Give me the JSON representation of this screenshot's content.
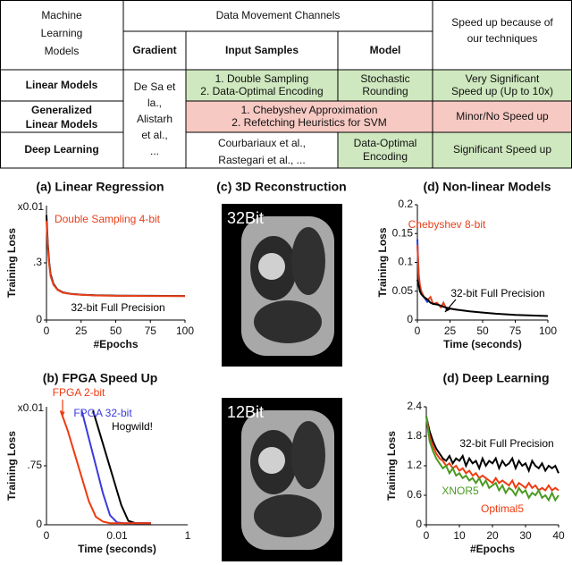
{
  "table": {
    "header": {
      "models": [
        "Machine",
        "Learning",
        "Models"
      ],
      "channels": "Data Movement Channels",
      "speedup": [
        "Speed up because of",
        "our techniques"
      ],
      "gradient": "Gradient",
      "input": "Input Samples",
      "model": "Model"
    },
    "gradient_cell": [
      "De Sa et",
      "la.,",
      "Alistarh",
      "et al.,",
      "..."
    ],
    "rows": [
      {
        "name": [
          "Linear Models"
        ],
        "input": [
          "1. Double Sampling",
          "2. Data-Optimal Encoding"
        ],
        "model": [
          "Stochastic",
          "Rounding"
        ],
        "speedup": [
          "Very Significant",
          "Speed up (Up to 10x)"
        ]
      },
      {
        "name": [
          "Generalized",
          "Linear Models"
        ],
        "input_model": [
          "1. Chebyshev Approximation",
          "2. Refetching Heuristics for SVM"
        ],
        "speedup": [
          "Minor/No Speed up"
        ]
      },
      {
        "name": [
          "Deep Learning"
        ],
        "input": [
          "Courbariaux et al.,",
          "Rastegari et al., ..."
        ],
        "model": [
          "Data-Optimal",
          "Encoding"
        ],
        "speedup": [
          "Significant Speed up"
        ]
      }
    ]
  },
  "panel_c": {
    "title": "(c) 3D Reconstruction",
    "images": [
      "32Bit",
      "12Bit"
    ]
  },
  "chart_data": [
    {
      "type": "line",
      "title": "(a) Linear Regression",
      "xlabel": "#Epochs",
      "ylabel": "Training Loss",
      "y_multiplier": "x0.01",
      "xlim": [
        0,
        100
      ],
      "xticks": [
        0,
        25,
        50,
        75,
        100
      ],
      "ylim": [
        0,
        0.6
      ],
      "yticks": [
        0,
        {
          "value": 0.3,
          "label": ".3"
        }
      ],
      "series": [
        {
          "name": "32-bit Full Precision",
          "color": "#000000",
          "x": [
            0,
            1,
            2,
            3,
            5,
            8,
            12,
            18,
            25,
            35,
            50,
            75,
            100
          ],
          "values": [
            0.55,
            0.4,
            0.3,
            0.24,
            0.19,
            0.16,
            0.145,
            0.137,
            0.133,
            0.13,
            0.128,
            0.127,
            0.126
          ]
        },
        {
          "name": "Double Sampling 4-bit",
          "color": "#e8401c",
          "x": [
            0,
            1,
            2,
            3,
            5,
            8,
            12,
            18,
            25,
            35,
            50,
            75,
            100
          ],
          "values": [
            0.52,
            0.38,
            0.29,
            0.23,
            0.185,
            0.158,
            0.143,
            0.136,
            0.132,
            0.129,
            0.127,
            0.126,
            0.125
          ]
        }
      ]
    },
    {
      "type": "line",
      "title": "(b) FPGA Speed Up",
      "xlabel": "Time (seconds)",
      "ylabel": "Training Loss",
      "y_multiplier": "x0.01",
      "xlim": [
        0,
        1
      ],
      "xtick_labels": [
        "0",
        "0.01",
        "1"
      ],
      "ylim": [
        0,
        1.5
      ],
      "yticks": [
        0,
        {
          "value": 0.75,
          "label": ".75"
        }
      ],
      "series": [
        {
          "name": "Hogwild!",
          "color": "#000000",
          "x": [
            0.33,
            0.38,
            0.43,
            0.48,
            0.53,
            0.58,
            0.63,
            0.74
          ],
          "values": [
            1.45,
            1.15,
            0.85,
            0.55,
            0.25,
            0.05,
            0.02,
            0.02
          ]
        },
        {
          "name": "FPGA 32-bit",
          "color": "#3a3ae0",
          "x": [
            0.25,
            0.3,
            0.35,
            0.4,
            0.45,
            0.5,
            0.55,
            0.74
          ],
          "values": [
            1.45,
            1.1,
            0.75,
            0.4,
            0.12,
            0.03,
            0.02,
            0.02
          ]
        },
        {
          "name": "FPGA 2-bit",
          "color": "#f03a10",
          "x": [
            0.1,
            0.15,
            0.2,
            0.25,
            0.3,
            0.35,
            0.4,
            0.45,
            0.74
          ],
          "values": [
            1.45,
            1.2,
            0.9,
            0.6,
            0.3,
            0.1,
            0.04,
            0.02,
            0.02
          ]
        }
      ]
    },
    {
      "type": "line",
      "title": "(d) Non-linear Models",
      "xlabel": "Time (seconds)",
      "ylabel": "Training Loss",
      "xlim": [
        0,
        100
      ],
      "xticks": [
        0,
        25,
        50,
        75,
        100
      ],
      "ylim": [
        0,
        0.2
      ],
      "yticks": [
        0,
        0.05,
        0.1,
        0.15,
        0.2
      ],
      "series": [
        {
          "color": "#2040e0",
          "x": [
            0,
            1,
            2,
            3,
            5,
            8
          ],
          "values": [
            0.14,
            0.07,
            0.05,
            0.045,
            0.04,
            0.03
          ]
        },
        {
          "name": "Chebyshev 8-bit",
          "color": "#e8401c",
          "x": [
            0,
            1,
            2,
            3,
            5,
            8,
            10,
            12,
            15,
            18,
            20,
            22,
            25,
            30
          ],
          "values": [
            0.13,
            0.08,
            0.06,
            0.05,
            0.04,
            0.035,
            0.04,
            0.028,
            0.03,
            0.022,
            0.03,
            0.02,
            0.02,
            0.018
          ]
        },
        {
          "name": "32-bit Full Precision",
          "color": "#000000",
          "x": [
            0,
            1,
            2,
            3,
            5,
            8,
            10,
            12,
            15,
            18,
            20,
            25,
            30,
            40,
            50,
            60,
            75,
            100
          ],
          "values": [
            0.07,
            0.06,
            0.05,
            0.045,
            0.04,
            0.035,
            0.03,
            0.028,
            0.027,
            0.025,
            0.023,
            0.02,
            0.018,
            0.015,
            0.013,
            0.011,
            0.009,
            0.007
          ]
        }
      ]
    },
    {
      "type": "line",
      "title": "(d) Deep Learning",
      "xlabel": "#Epochs",
      "ylabel": "Training Loss",
      "xlim": [
        0,
        40
      ],
      "xticks": [
        0,
        10,
        20,
        30,
        40
      ],
      "ylim": [
        0,
        2.4
      ],
      "yticks": [
        0,
        0.6,
        1.2,
        1.8,
        2.4
      ],
      "series": [
        {
          "name": "32-bit Full Precision",
          "color": "#000000",
          "x": [
            0,
            1,
            2,
            3,
            4,
            5,
            6,
            7,
            8,
            9,
            10,
            11,
            12,
            13,
            14,
            15,
            16,
            17,
            18,
            19,
            20,
            21,
            22,
            23,
            24,
            25,
            26,
            27,
            28,
            29,
            30,
            31,
            32,
            33,
            34,
            35,
            36,
            37,
            38,
            39,
            40
          ],
          "values": [
            2.2,
            1.9,
            1.7,
            1.55,
            1.45,
            1.35,
            1.3,
            1.4,
            1.25,
            1.35,
            1.3,
            1.4,
            1.2,
            1.35,
            1.25,
            1.3,
            1.15,
            1.35,
            1.2,
            1.3,
            1.25,
            1.35,
            1.15,
            1.3,
            1.2,
            1.25,
            1.35,
            1.15,
            1.3,
            1.2,
            1.25,
            1.1,
            1.3,
            1.2,
            1.15,
            1.25,
            1.1,
            1.2,
            1.15,
            1.2,
            1.05
          ]
        },
        {
          "name": "Optimal5",
          "color": "#f03a10",
          "x": [
            0,
            1,
            2,
            3,
            4,
            5,
            6,
            7,
            8,
            9,
            10,
            11,
            12,
            13,
            14,
            15,
            16,
            17,
            18,
            19,
            20,
            21,
            22,
            23,
            24,
            25,
            26,
            27,
            28,
            29,
            30,
            31,
            32,
            33,
            34,
            35,
            36,
            37,
            38,
            39,
            40
          ],
          "values": [
            2.2,
            1.8,
            1.6,
            1.45,
            1.35,
            1.3,
            1.2,
            1.25,
            1.15,
            1.2,
            1.1,
            1.15,
            1.05,
            1.1,
            1.0,
            1.05,
            0.95,
            1.0,
            0.95,
            0.9,
            0.85,
            0.95,
            0.85,
            0.9,
            0.85,
            0.8,
            0.9,
            0.75,
            0.85,
            0.8,
            0.75,
            0.85,
            0.75,
            0.8,
            0.7,
            0.75,
            0.7,
            0.8,
            0.7,
            0.75,
            0.7
          ]
        },
        {
          "name": "XNOR5",
          "color": "#4a9a20",
          "x": [
            0,
            1,
            2,
            3,
            4,
            5,
            6,
            7,
            8,
            9,
            10,
            11,
            12,
            13,
            14,
            15,
            16,
            17,
            18,
            19,
            20,
            21,
            22,
            23,
            24,
            25,
            26,
            27,
            28,
            29,
            30,
            31,
            32,
            33,
            34,
            35,
            36,
            37,
            38,
            39,
            40
          ],
          "values": [
            2.2,
            1.7,
            1.5,
            1.35,
            1.25,
            1.15,
            1.2,
            1.05,
            1.15,
            1.0,
            1.05,
            0.95,
            1.0,
            0.9,
            0.95,
            0.85,
            0.95,
            0.8,
            0.9,
            0.75,
            0.8,
            0.85,
            0.7,
            0.8,
            0.65,
            0.75,
            0.7,
            0.6,
            0.75,
            0.65,
            0.7,
            0.55,
            0.65,
            0.6,
            0.7,
            0.55,
            0.6,
            0.5,
            0.65,
            0.5,
            0.6
          ]
        }
      ]
    }
  ]
}
